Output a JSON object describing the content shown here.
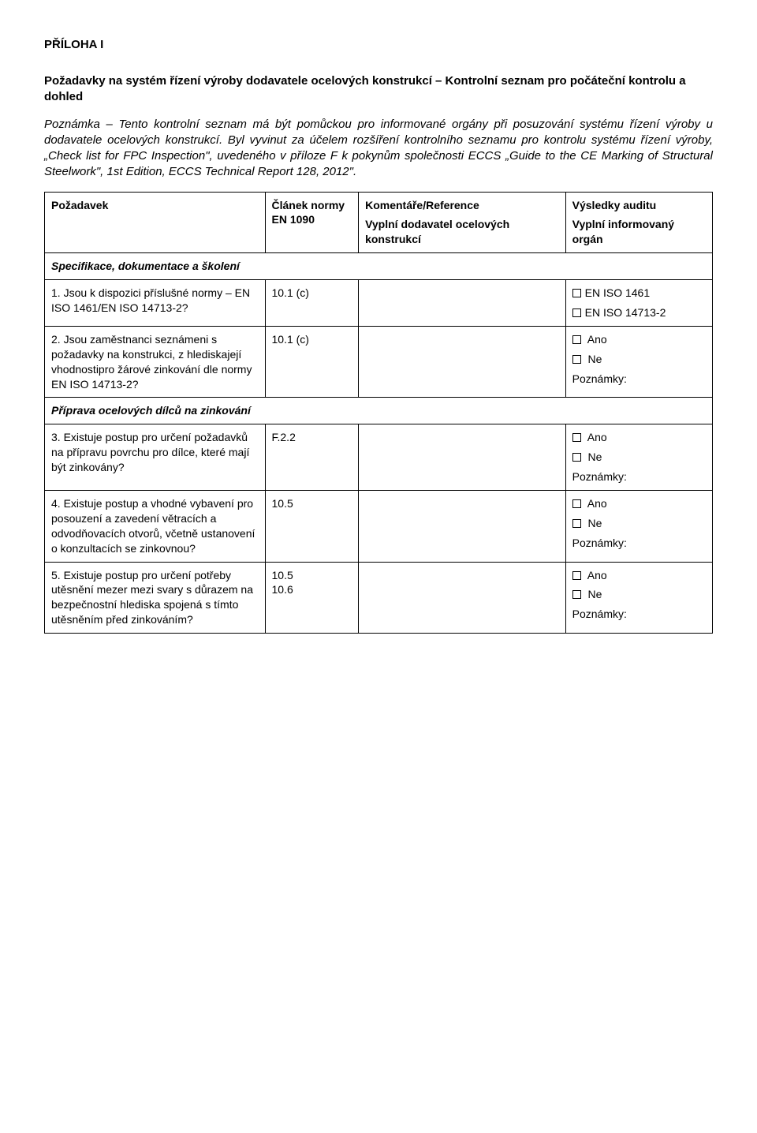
{
  "title": "PŘÍLOHA I",
  "subtitle": "Požadavky na systém řízení výroby dodavatele ocelových konstrukcí – Kontrolní seznam pro počáteční kontrolu a dohled",
  "note": "Poznámka – Tento kontrolní seznam má být pomůckou pro informované orgány při posuzování systému řízení výroby u dodavatele ocelových konstrukcí. Byl vyvinut za účelem rozšíření kontrolního seznamu pro kontrolu systému řízení výroby, „Check list for FPC Inspection\", uvedeného v příloze F k pokynům společnosti ECCS „Guide to the CE Marking of Structural Steelwork\", 1st Edition, ECCS Technical Report 128, 2012\".",
  "header": {
    "c1": "Požadavek",
    "c2a": "Článek normy",
    "c2b": "EN 1090",
    "c3a": "Komentáře/Reference",
    "c3b": "Vyplní dodavatel ocelových konstrukcí",
    "c4a": "Výsledky auditu",
    "c4b": "Vyplní informovaný orgán"
  },
  "section1": "Specifikace, dokumentace a školení",
  "row1": {
    "req": "1. Jsou k dispozici příslušné normy – EN ISO 1461/EN ISO 14713-2?",
    "art": "10.1 (c)",
    "res": [
      "EN ISO 1461",
      "EN ISO 14713-2"
    ]
  },
  "row2": {
    "req": "2. Jsou zaměstnanci seznámeni s požadavky na konstrukci, z hlediskajejí vhodnostipro žárové zinkování dle normy EN ISO 14713-2?",
    "art": "10.1 (c)",
    "res": [
      "Ano",
      "Ne",
      "Poznámky:"
    ]
  },
  "section2": "Příprava ocelových dílců na zinkování",
  "row3": {
    "req": "3. Existuje postup pro určení požadavků na přípravu povrchu pro dílce, které mají být zinkovány?",
    "art": "F.2.2",
    "res": [
      "Ano",
      "Ne",
      "Poznámky:"
    ]
  },
  "row4": {
    "req": "4. Existuje postup a vhodné vybavení pro posouzení a zavedení větracích a odvodňovacích otvorů, včetně ustanovení o konzultacích se zinkovnou?",
    "art": "10.5",
    "res": [
      "Ano",
      "Ne",
      "Poznámky:"
    ]
  },
  "row5": {
    "req": "5. Existuje postup pro určení potřeby utěsnění mezer mezi svary s důrazem na bezpečnostní hlediska spojená s tímto utěsněním před zinkováním?",
    "art1": "10.5",
    "art2": "10.6",
    "res": [
      "Ano",
      "Ne",
      "Poznámky:"
    ]
  }
}
